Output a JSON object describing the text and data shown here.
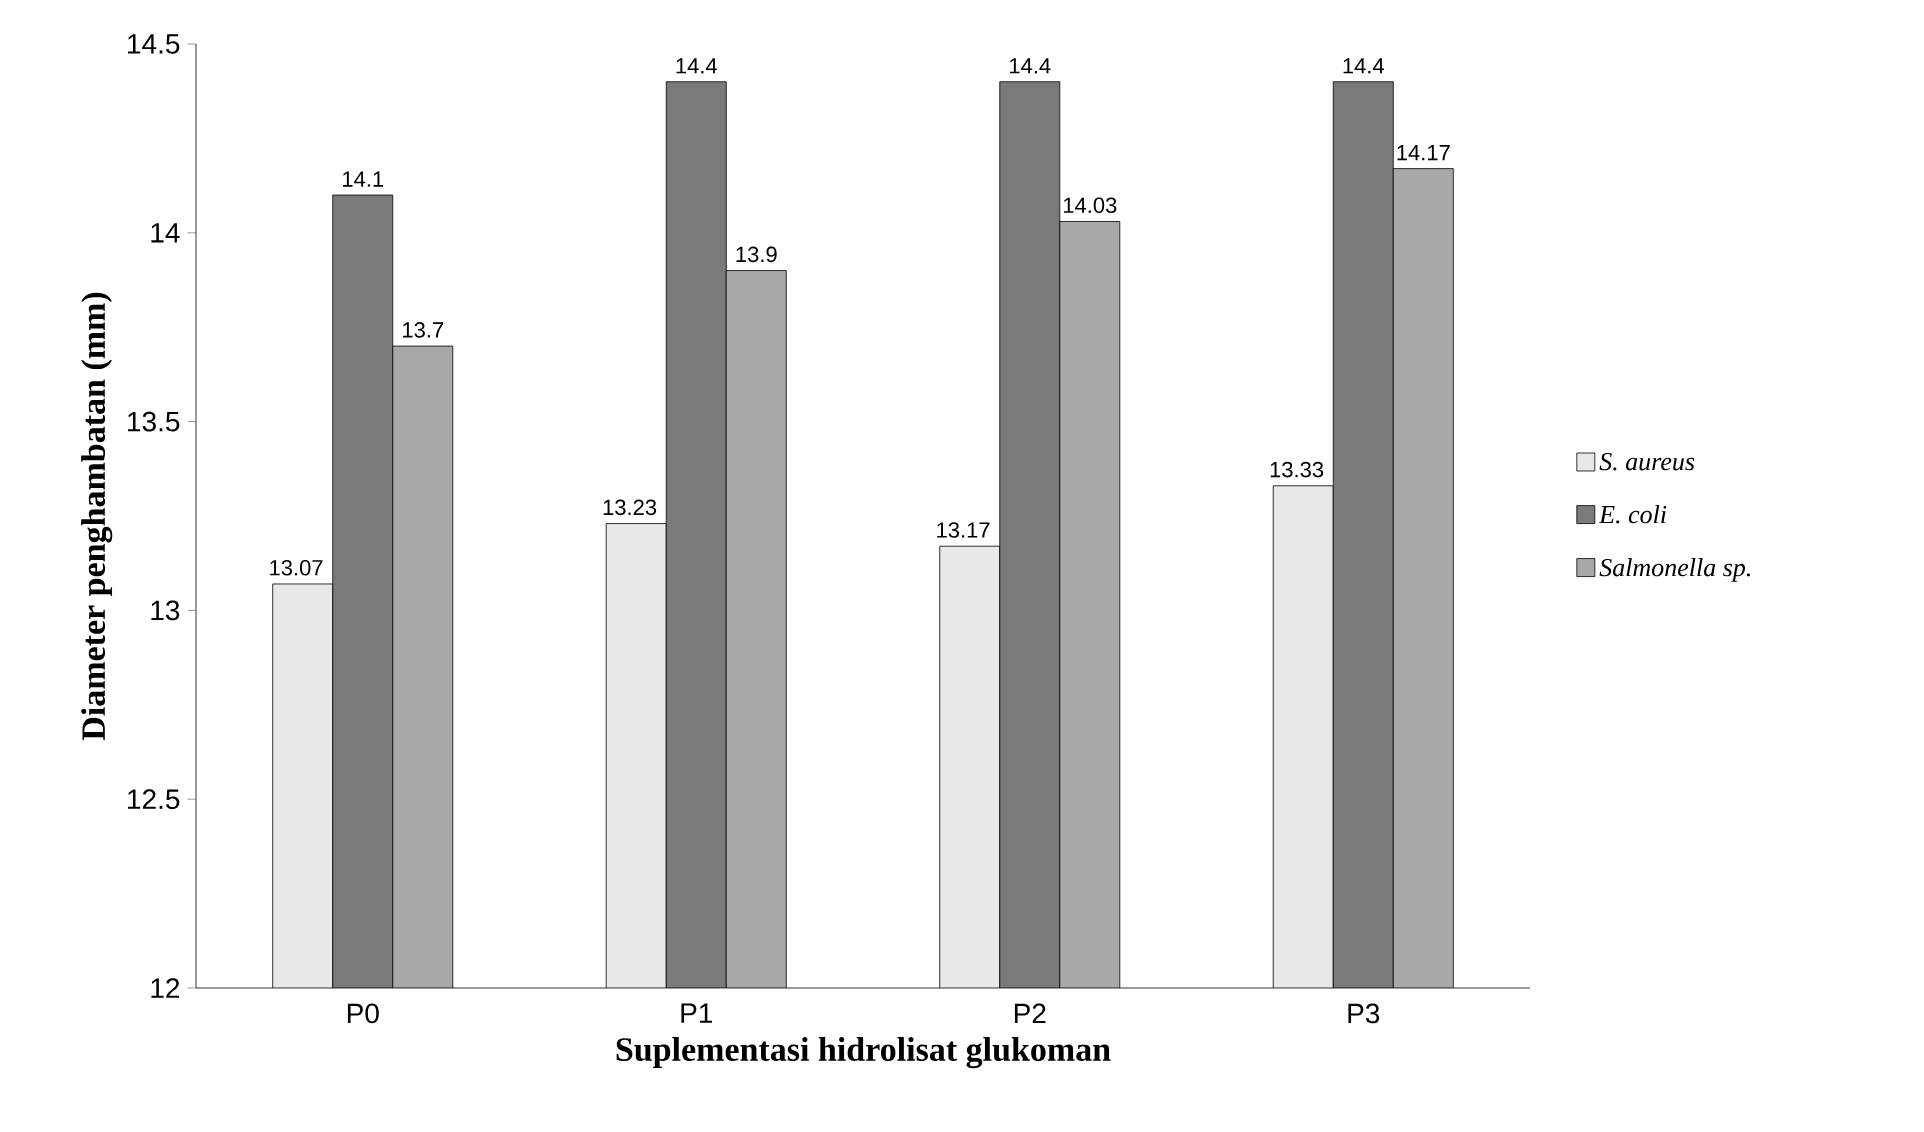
{
  "chart_data": {
    "type": "bar",
    "xlabel": "Suplementasi hidrolisat glukoman",
    "ylabel": "Diameter penghambatan (mm)",
    "categories": [
      "P0",
      "P1",
      "P2",
      "P3"
    ],
    "series": [
      {
        "name": "S. aureus",
        "color": "#e8e8e8",
        "values": [
          13.07,
          13.23,
          13.17,
          13.33
        ]
      },
      {
        "name": "E. coli",
        "color": "#7a7a7a",
        "values": [
          14.1,
          14.4,
          14.4,
          14.4
        ]
      },
      {
        "name": "Salmonella sp.",
        "color": "#a8a8a8",
        "values": [
          13.7,
          13.9,
          14.03,
          14.17
        ]
      }
    ],
    "ylim": [
      12,
      14.5
    ],
    "yticks": [
      12,
      12.5,
      13,
      13.5,
      14,
      14.5
    ],
    "data_labels": true,
    "legend": "right",
    "grid": false
  }
}
